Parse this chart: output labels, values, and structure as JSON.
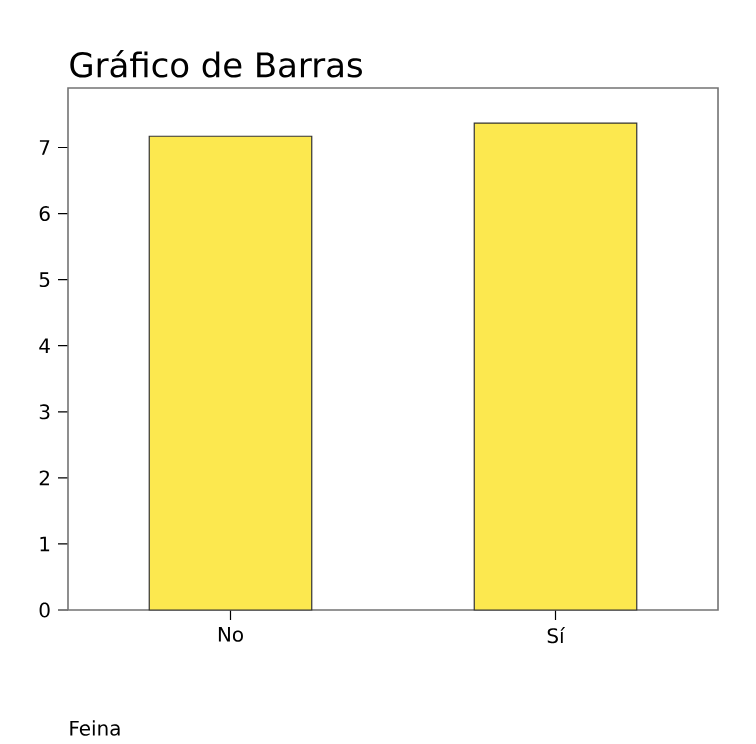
{
  "chart_data": {
    "type": "bar",
    "title": "Gráfico de Barras",
    "xlabel": "Feina",
    "categories": [
      "No",
      "Sí"
    ],
    "values": [
      7.17,
      7.37
    ],
    "color": "#fce84f",
    "ylim": [
      0,
      7.9
    ],
    "yticks": [
      0,
      1,
      2,
      3,
      4,
      5,
      6,
      7
    ]
  }
}
